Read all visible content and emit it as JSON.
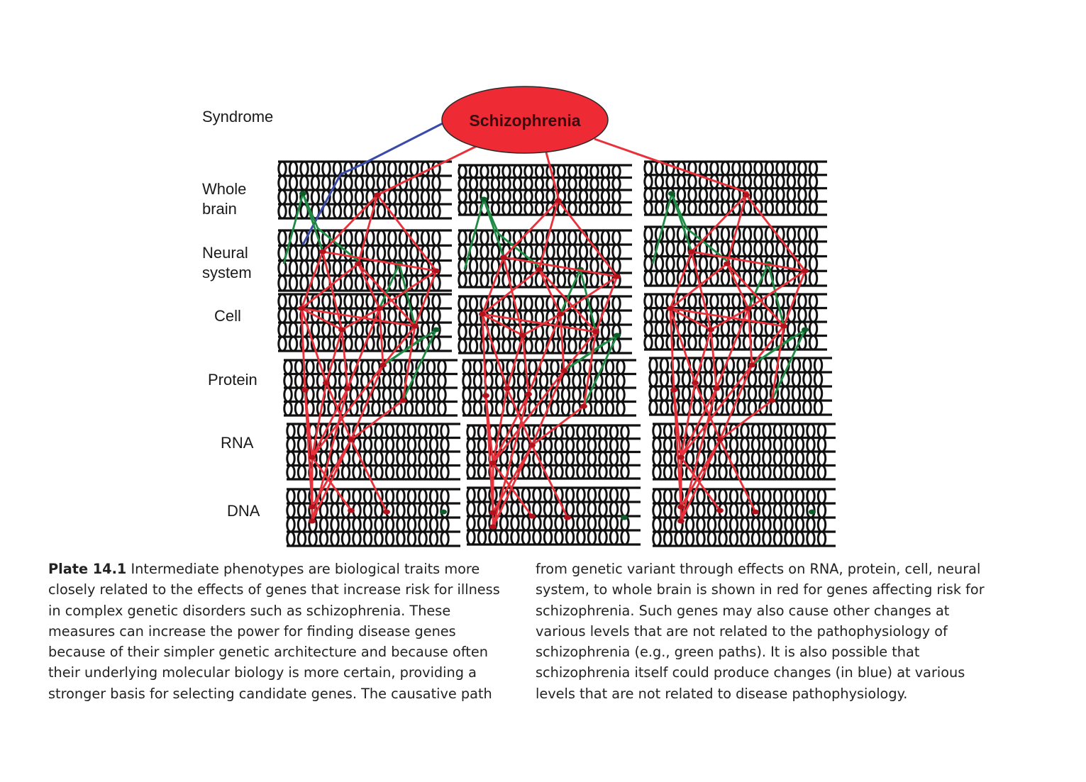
{
  "syndrome_node": {
    "label": "Schizophrenia"
  },
  "levels": [
    {
      "key": "syndrome",
      "label": "Syndrome"
    },
    {
      "key": "whole_brain",
      "label": "Whole\nbrain"
    },
    {
      "key": "neural",
      "label": "Neural\nsystem"
    },
    {
      "key": "cell",
      "label": "Cell"
    },
    {
      "key": "protein",
      "label": "Protein"
    },
    {
      "key": "rna",
      "label": "RNA"
    },
    {
      "key": "dna",
      "label": "DNA"
    }
  ],
  "colors": {
    "syndrome_fill": "#ee2a35",
    "disease_path": "#e8313a",
    "other_path": "#1e8a43",
    "syndrome_effect_path": "#3a4aa8",
    "network": "#111111"
  },
  "caption": {
    "plate": "Plate 14.1",
    "col1": "Intermediate phenotypes are biological traits more closely related to the effects of genes that increase risk for illness in complex genetic disorders such as schizophrenia. These measures can increase the power for finding disease genes because of their simpler genetic architecture and because often their underlying molecular biology is more certain, providing a stronger basis for selecting candidate genes. The causative path",
    "col2": "from genetic variant through effects on RNA, protein, cell, neural system, to whole brain is shown in red for genes affecting risk for schizophrenia. Such genes may also cause other changes at various levels that are not related to the pathophysiology of schizophrenia (e.g., green paths). It is also possible that schizophrenia itself could produce changes (in blue) at various levels that are not related to disease pathophysiology."
  }
}
